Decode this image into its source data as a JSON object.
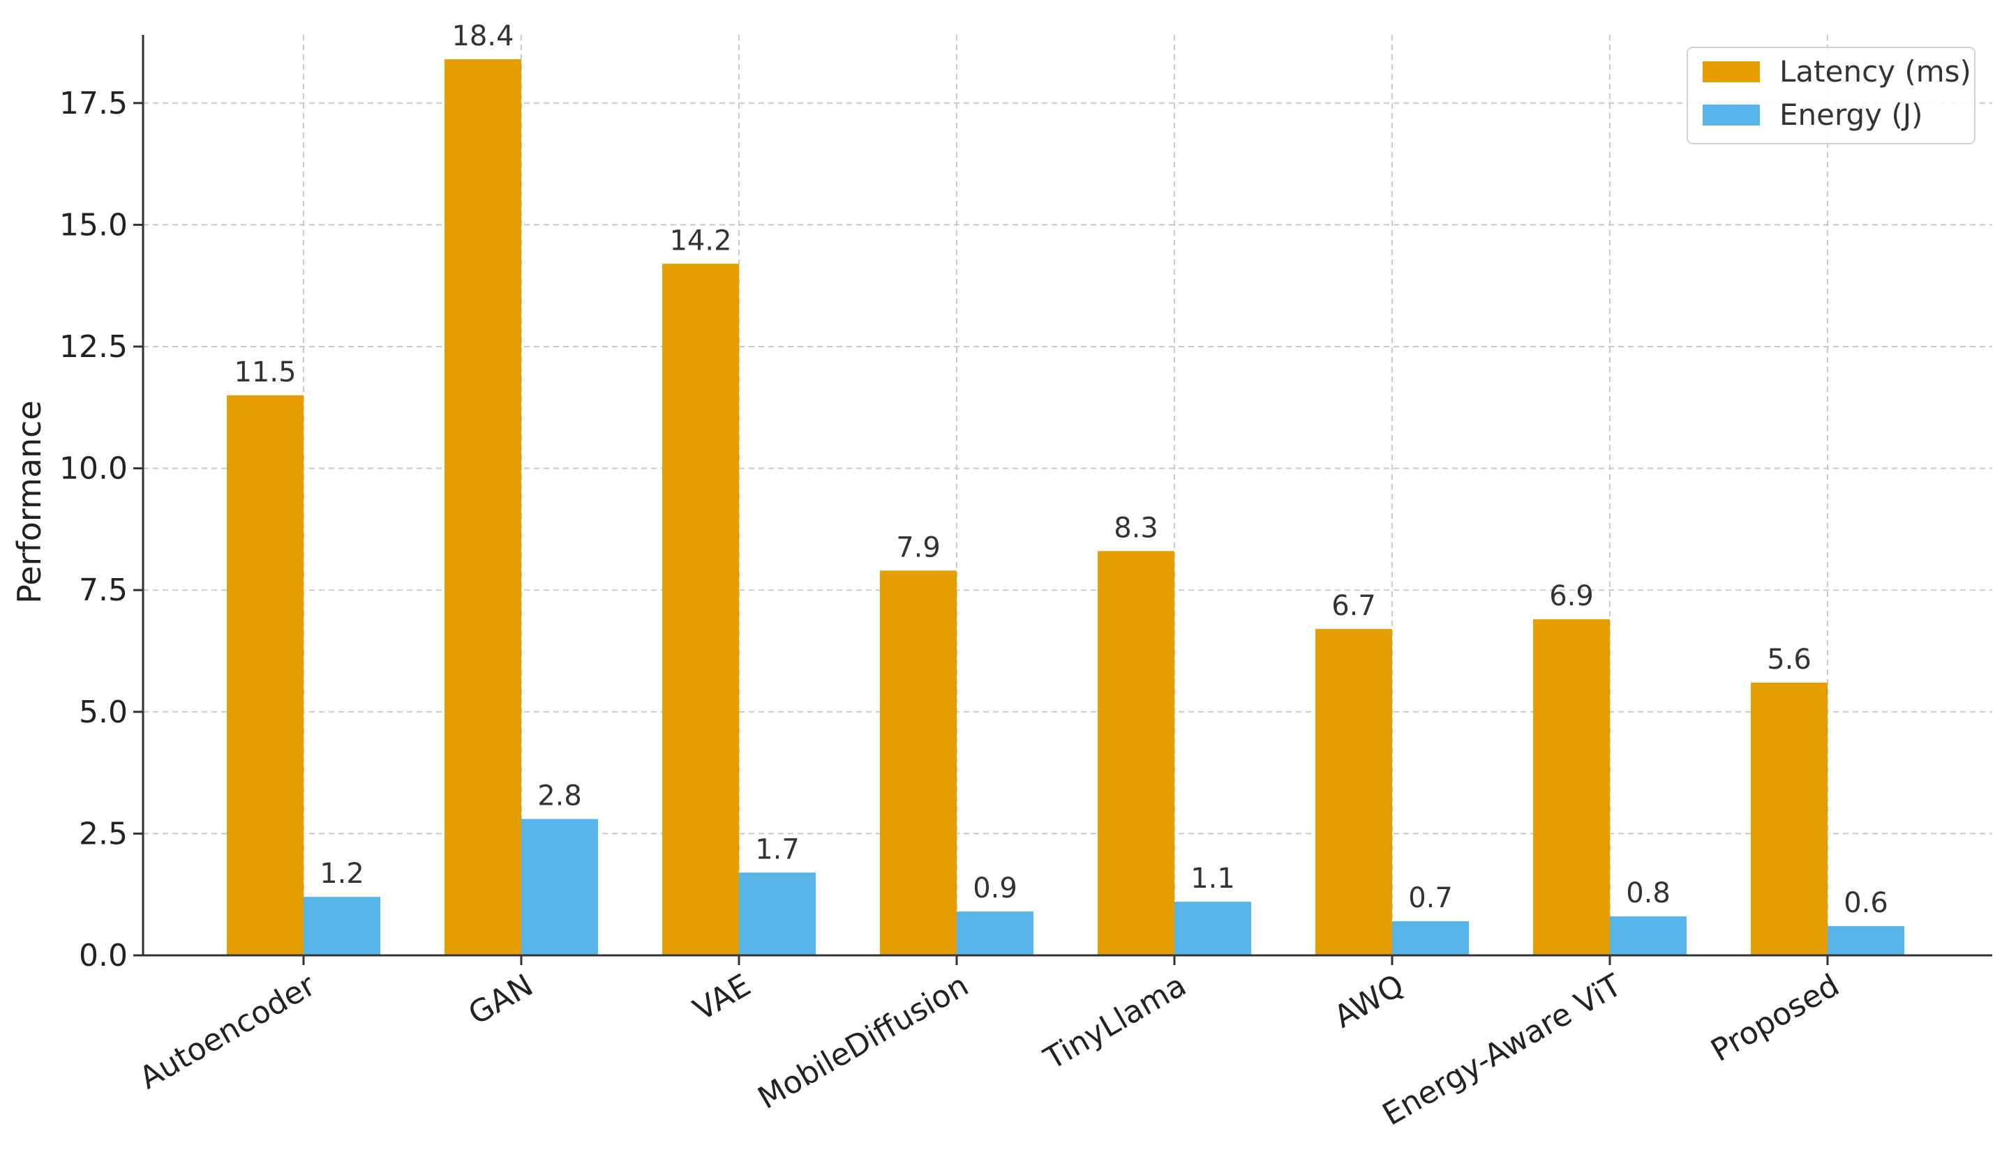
{
  "chart_data": {
    "type": "bar",
    "title": "",
    "xlabel": "",
    "ylabel": "Performance",
    "ylim": [
      0,
      18.9
    ],
    "yticks": [
      0.0,
      2.5,
      5.0,
      7.5,
      10.0,
      12.5,
      15.0,
      17.5
    ],
    "ytick_labels": [
      "0.0",
      "2.5",
      "5.0",
      "7.5",
      "10.0",
      "12.5",
      "15.0",
      "17.5"
    ],
    "grid": true,
    "legend_position": "top-right",
    "categories": [
      "Autoencoder",
      "GAN",
      "VAE",
      "MobileDiffusion",
      "TinyLlama",
      "AWQ",
      "Energy-Aware ViT",
      "Proposed"
    ],
    "series": [
      {
        "name": "Latency (ms)",
        "color": "#E69F00",
        "values": [
          11.5,
          18.4,
          14.2,
          7.9,
          8.3,
          6.7,
          6.9,
          5.6
        ]
      },
      {
        "name": "Energy (J)",
        "color": "#56B4E9",
        "values": [
          1.2,
          2.8,
          1.7,
          0.9,
          1.1,
          0.7,
          0.8,
          0.6
        ]
      }
    ]
  }
}
